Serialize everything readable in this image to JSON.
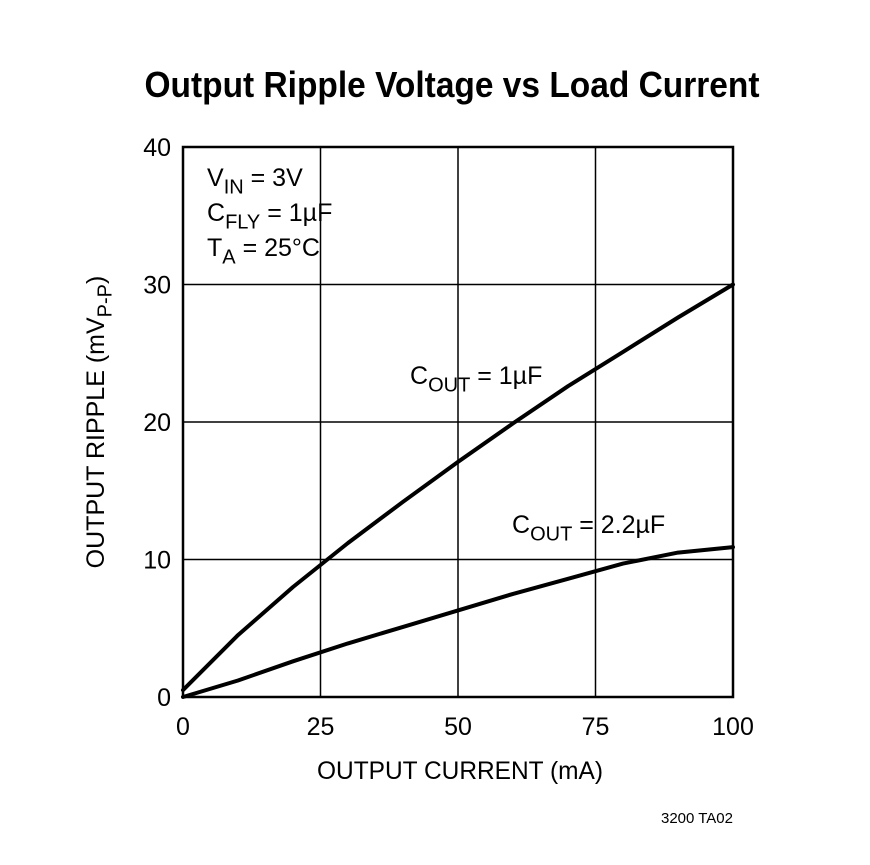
{
  "chart_data": {
    "type": "line",
    "title": "Output Ripple Voltage vs Load Current",
    "xlabel": "OUTPUT CURRENT (mA)",
    "ylabel_parts": [
      "OUTPUT RIPPLE (mV",
      "P-P",
      ")"
    ],
    "x": [
      0,
      10,
      20,
      30,
      40,
      50,
      60,
      70,
      80,
      90,
      100
    ],
    "series": [
      {
        "name_parts": [
          "C",
          "OUT",
          " = 1µF"
        ],
        "color": "#000000",
        "values": [
          0.5,
          4.5,
          8.0,
          11.2,
          14.2,
          17.1,
          19.9,
          22.6,
          25.1,
          27.6,
          30
        ]
      },
      {
        "name_parts": [
          "C",
          "OUT",
          " = 2.2µF"
        ],
        "color": "#000000",
        "values": [
          0,
          1.2,
          2.6,
          3.9,
          5.1,
          6.3,
          7.5,
          8.6,
          9.7,
          10.5,
          10.9
        ]
      }
    ],
    "annotations": [
      [
        "V",
        "IN",
        " = 3V"
      ],
      [
        "C",
        "FLY",
        " = 1µF"
      ],
      [
        "T",
        "A",
        " = 25°C"
      ]
    ],
    "xlim": [
      0,
      100
    ],
    "xticks": [
      0,
      25,
      50,
      75,
      100
    ],
    "ylim": [
      0,
      40
    ],
    "yticks": [
      0,
      10,
      20,
      30,
      40
    ],
    "grid": true,
    "footnote": "3200 TA02"
  }
}
